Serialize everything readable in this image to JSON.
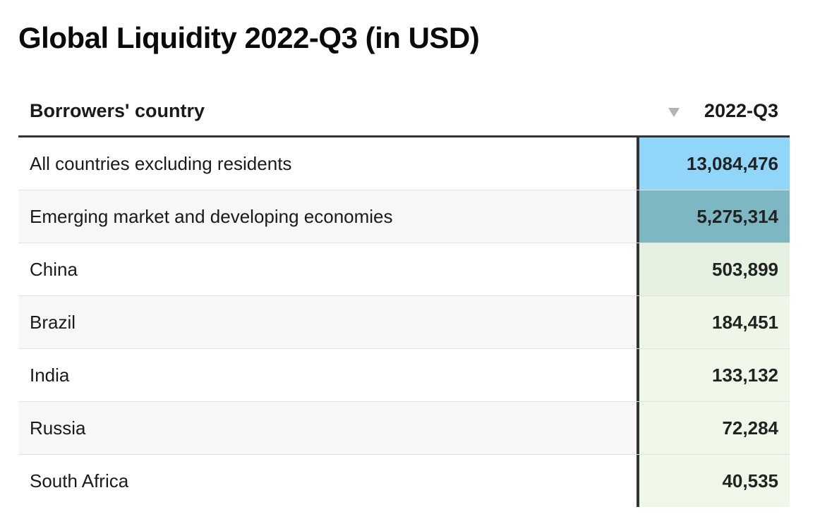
{
  "title": "Global Liquidity 2022-Q3 (in USD)",
  "table": {
    "column_country": "Borrowers' country",
    "column_period": "2022-Q3",
    "sort_icon": "sort-descending-icon"
  },
  "chart_data": {
    "type": "table",
    "title": "Global Liquidity 2022-Q3 (in USD)",
    "columns": [
      "Borrowers' country",
      "2022-Q3"
    ],
    "rows": [
      {
        "country": "All countries excluding residents",
        "value": 13084476,
        "display": "13,084,476",
        "color": "#8fd6f8"
      },
      {
        "country": "Emerging market and developing economies",
        "value": 5275314,
        "display": "5,275,314",
        "color": "#7db8c2"
      },
      {
        "country": "China",
        "value": 503899,
        "display": "503,899",
        "color": "#e4f0e0"
      },
      {
        "country": "Brazil",
        "value": 184451,
        "display": "184,451",
        "color": "#edf6e7"
      },
      {
        "country": "India",
        "value": 133132,
        "display": "133,132",
        "color": "#eef7e8"
      },
      {
        "country": "Russia",
        "value": 72284,
        "display": "72,284",
        "color": "#eff7e9"
      },
      {
        "country": "South Africa",
        "value": 40535,
        "display": "40,535",
        "color": "#eff7e9"
      }
    ]
  }
}
